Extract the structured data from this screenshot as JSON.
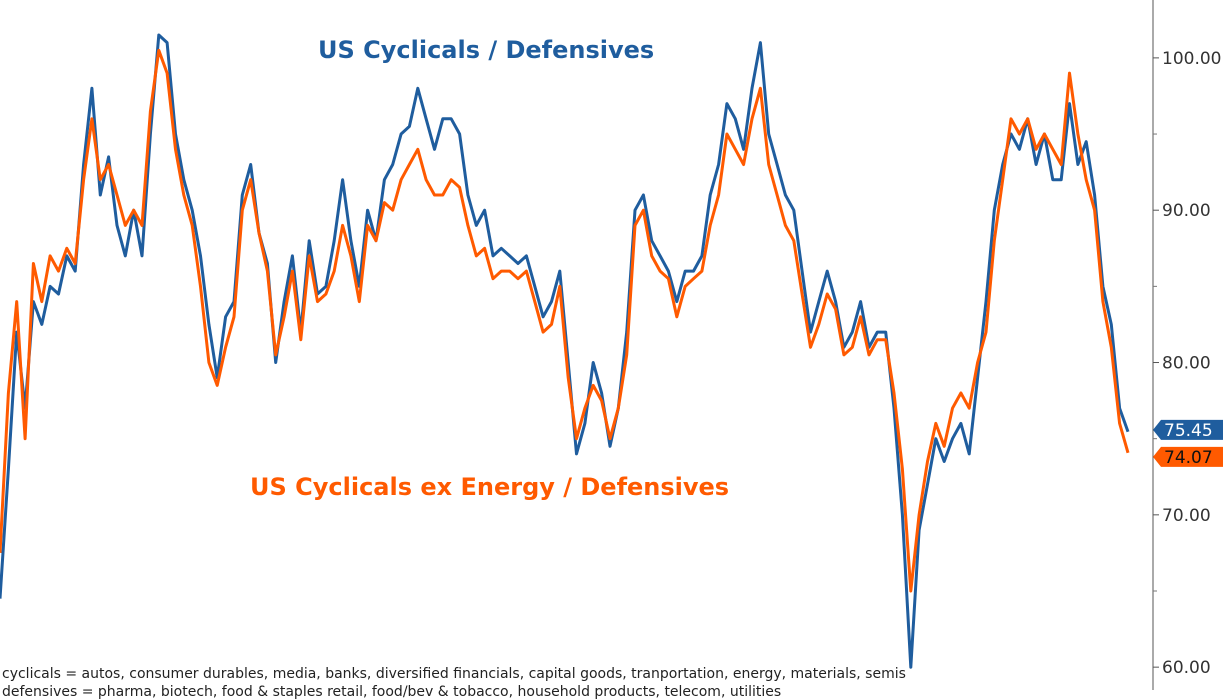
{
  "chart_data": {
    "type": "line",
    "title": "",
    "xlabel": "",
    "ylabel": "",
    "ylim": [
      58.5,
      103.8
    ],
    "y_axis_position": "right",
    "y_ticks": [
      60,
      70,
      80,
      90,
      100
    ],
    "y_tick_labels": [
      "60.00",
      "70.00",
      "80.00",
      "90.00",
      "100.00"
    ],
    "grid": false,
    "series": [
      {
        "name": "US Cyclicals / Defensives",
        "color": "#1f5d9e",
        "last_value_label": "75.45",
        "values": [
          64.5,
          73.0,
          82.0,
          77.0,
          84.0,
          82.5,
          85.0,
          84.5,
          87.0,
          86.0,
          93.0,
          98.0,
          91.0,
          93.5,
          89.0,
          87.0,
          90.0,
          87.0,
          95.0,
          101.5,
          101.0,
          95.0,
          92.0,
          90.0,
          87.0,
          82.5,
          79.0,
          83.0,
          84.0,
          91.0,
          93.0,
          88.5,
          86.5,
          80.0,
          84.0,
          87.0,
          82.0,
          88.0,
          84.5,
          85.0,
          88.0,
          92.0,
          88.0,
          85.0,
          90.0,
          88.0,
          92.0,
          93.0,
          95.0,
          95.5,
          98.0,
          96.0,
          94.0,
          96.0,
          96.0,
          95.0,
          91.0,
          89.0,
          90.0,
          87.0,
          87.5,
          87.0,
          86.5,
          87.0,
          85.0,
          83.0,
          84.0,
          86.0,
          80.0,
          74.0,
          76.0,
          80.0,
          78.0,
          74.5,
          77.0,
          82.0,
          90.0,
          91.0,
          88.0,
          87.0,
          86.0,
          84.0,
          86.0,
          86.0,
          87.0,
          91.0,
          93.0,
          97.0,
          96.0,
          94.0,
          98.0,
          101.0,
          95.0,
          93.0,
          91.0,
          90.0,
          86.0,
          82.0,
          84.0,
          86.0,
          84.0,
          81.0,
          82.0,
          84.0,
          81.0,
          82.0,
          82.0,
          77.0,
          70.0,
          60.0,
          69.0,
          72.0,
          75.0,
          73.5,
          75.0,
          76.0,
          74.0,
          79.0,
          84.0,
          90.0,
          93.0,
          95.0,
          94.0,
          96.0,
          93.0,
          95.0,
          92.0,
          92.0,
          97.0,
          93.0,
          94.5,
          91.0,
          85.0,
          82.5,
          77.0,
          75.45
        ]
      },
      {
        "name": "US Cyclicals ex Energy / Defensives",
        "color": "#ff5a00",
        "last_value_label": "74.07",
        "values": [
          67.5,
          78.0,
          84.0,
          75.0,
          86.5,
          84.0,
          87.0,
          86.0,
          87.5,
          86.5,
          92.0,
          96.0,
          92.0,
          93.0,
          91.0,
          89.0,
          90.0,
          89.0,
          96.5,
          100.5,
          99.0,
          94.0,
          91.0,
          89.0,
          85.0,
          80.0,
          78.5,
          81.0,
          83.0,
          90.0,
          92.0,
          88.5,
          86.0,
          80.5,
          83.0,
          86.0,
          81.5,
          87.0,
          84.0,
          84.5,
          86.0,
          89.0,
          87.0,
          84.0,
          89.0,
          88.0,
          90.5,
          90.0,
          92.0,
          93.0,
          94.0,
          92.0,
          91.0,
          91.0,
          92.0,
          91.5,
          89.0,
          87.0,
          87.5,
          85.5,
          86.0,
          86.0,
          85.5,
          86.0,
          84.0,
          82.0,
          82.5,
          85.0,
          79.0,
          75.0,
          77.0,
          78.5,
          77.5,
          75.0,
          77.0,
          80.5,
          89.0,
          90.0,
          87.0,
          86.0,
          85.5,
          83.0,
          85.0,
          85.5,
          86.0,
          89.0,
          91.0,
          95.0,
          94.0,
          93.0,
          96.0,
          98.0,
          93.0,
          91.0,
          89.0,
          88.0,
          84.5,
          81.0,
          82.5,
          84.5,
          83.5,
          80.5,
          81.0,
          83.0,
          80.5,
          81.5,
          81.5,
          78.0,
          73.0,
          65.0,
          70.0,
          73.5,
          76.0,
          74.5,
          77.0,
          78.0,
          77.0,
          80.0,
          82.0,
          88.0,
          92.0,
          96.0,
          95.0,
          96.0,
          94.0,
          95.0,
          94.0,
          93.0,
          99.0,
          95.0,
          92.0,
          90.0,
          84.0,
          81.0,
          76.0,
          74.07
        ]
      }
    ],
    "annotations": [
      "US Cyclicals / Defensives",
      "US Cyclicals ex Energy / Defensives"
    ]
  },
  "footnotes": {
    "line1": "cyclicals = autos, consumer durables, media, banks, diversified financials, capital goods, tranportation, energy, materials, semis",
    "line2": "defensives = pharma, biotech, food & staples retail, food/bev & tobacco, household products, telecom, utilities"
  }
}
